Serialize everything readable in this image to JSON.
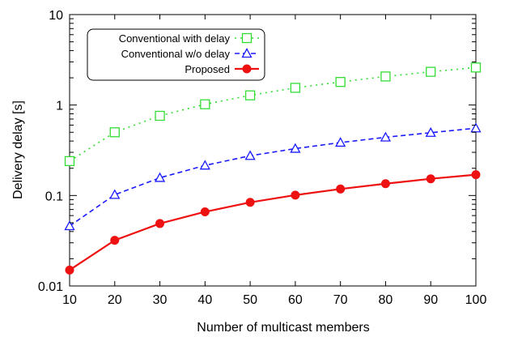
{
  "chart_data": {
    "type": "line",
    "x": [
      10,
      20,
      30,
      40,
      50,
      60,
      70,
      80,
      90,
      100
    ],
    "xlabel": "Number of multicast members",
    "ylabel": "Delivery delay [s]",
    "xlim": [
      10,
      100
    ],
    "ylim": [
      0.01,
      10
    ],
    "yscale": "log",
    "x_ticks": [
      "10",
      "20",
      "30",
      "40",
      "50",
      "60",
      "70",
      "80",
      "90",
      "100"
    ],
    "y_ticks": [
      "0.01",
      "0.1",
      "1",
      "10"
    ],
    "grid": false,
    "legend_position": "top-left",
    "series": [
      {
        "name": "Conventional with delay",
        "color": "#33dd33",
        "line": "dotted",
        "marker": "square-open",
        "values": [
          0.24,
          0.5,
          0.76,
          1.02,
          1.28,
          1.55,
          1.8,
          2.07,
          2.33,
          2.6
        ]
      },
      {
        "name": "Conventional w/o delay",
        "color": "#1a1aff",
        "line": "dashed",
        "marker": "triangle-open",
        "values": [
          0.046,
          0.102,
          0.157,
          0.215,
          0.275,
          0.33,
          0.385,
          0.44,
          0.495,
          0.555
        ]
      },
      {
        "name": "Proposed",
        "color": "#ee1111",
        "line": "solid",
        "marker": "circle-filled",
        "values": [
          0.015,
          0.032,
          0.049,
          0.066,
          0.084,
          0.101,
          0.118,
          0.135,
          0.153,
          0.17
        ]
      }
    ]
  }
}
